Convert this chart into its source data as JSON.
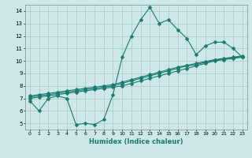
{
  "xlabel": "Humidex (Indice chaleur)",
  "x": [
    0,
    1,
    2,
    3,
    4,
    5,
    6,
    7,
    8,
    9,
    10,
    11,
    12,
    13,
    14,
    15,
    16,
    17,
    18,
    19,
    20,
    21,
    22,
    23
  ],
  "line1_y": [
    6.8,
    6.0,
    7.0,
    7.2,
    7.0,
    4.9,
    5.0,
    4.9,
    5.3,
    7.3,
    10.3,
    12.0,
    13.3,
    14.3,
    13.0,
    13.3,
    12.5,
    11.8,
    10.5,
    11.2,
    11.5,
    11.5,
    11.0,
    10.3
  ],
  "line2_y": [
    7.0,
    7.1,
    7.2,
    7.3,
    7.4,
    7.5,
    7.6,
    7.7,
    7.8,
    7.9,
    8.0,
    8.2,
    8.4,
    8.6,
    8.8,
    9.0,
    9.2,
    9.4,
    9.6,
    9.8,
    10.0,
    10.1,
    10.2,
    10.3
  ],
  "line3_y": [
    7.1,
    7.2,
    7.3,
    7.4,
    7.5,
    7.6,
    7.7,
    7.8,
    7.9,
    8.0,
    8.2,
    8.4,
    8.6,
    8.8,
    9.0,
    9.2,
    9.4,
    9.6,
    9.7,
    9.9,
    10.05,
    10.15,
    10.25,
    10.35
  ],
  "line4_y": [
    7.2,
    7.3,
    7.4,
    7.5,
    7.6,
    7.7,
    7.8,
    7.9,
    8.0,
    8.1,
    8.3,
    8.5,
    8.7,
    8.9,
    9.1,
    9.3,
    9.5,
    9.65,
    9.8,
    9.95,
    10.1,
    10.2,
    10.3,
    10.4
  ],
  "line_color": "#1a7a6e",
  "bg_color": "#cce8e8",
  "grid_color": "#b0cccc",
  "ylim": [
    4.5,
    14.5
  ],
  "xlim": [
    -0.5,
    23.5
  ],
  "yticks": [
    5,
    6,
    7,
    8,
    9,
    10,
    11,
    12,
    13,
    14
  ],
  "xticks": [
    0,
    1,
    2,
    3,
    4,
    5,
    6,
    7,
    8,
    9,
    10,
    11,
    12,
    13,
    14,
    15,
    16,
    17,
    18,
    19,
    20,
    21,
    22,
    23
  ]
}
